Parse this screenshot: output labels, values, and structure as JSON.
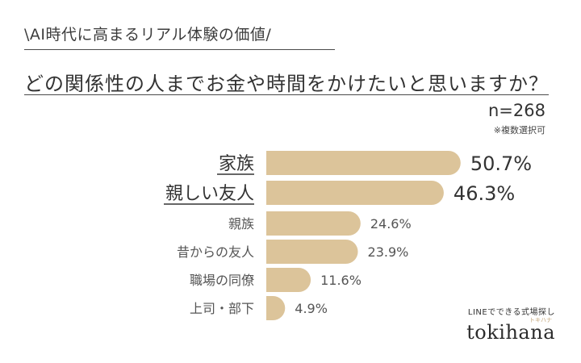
{
  "header": {
    "subtitle": "\\AI時代に高まるリアル体験の価値/",
    "title": "どの関係性の人までお金や時間をかけたいと思いますか？",
    "sample": "n=268",
    "note": "※複数選択可"
  },
  "brand": {
    "tagline": "LINEでできる式場探し",
    "small": "トキハナ",
    "name": "tokihana"
  },
  "colors": {
    "bar": "#dcc49a",
    "text_primary": "#333333",
    "text_secondary": "#555555"
  },
  "chart_data": {
    "type": "bar",
    "orientation": "horizontal",
    "categories": [
      "家族",
      "親しい友人",
      "親族",
      "昔からの友人",
      "職場の同僚",
      "上司・部下"
    ],
    "values": [
      50.7,
      46.3,
      24.6,
      23.9,
      11.6,
      4.9
    ],
    "value_labels": [
      "50.7%",
      "46.3%",
      "24.6%",
      "23.9%",
      "11.6%",
      "4.9%"
    ],
    "emphasized": [
      true,
      true,
      false,
      false,
      false,
      false
    ],
    "unit": "%",
    "xlim": [
      0,
      100
    ],
    "grid": false
  }
}
